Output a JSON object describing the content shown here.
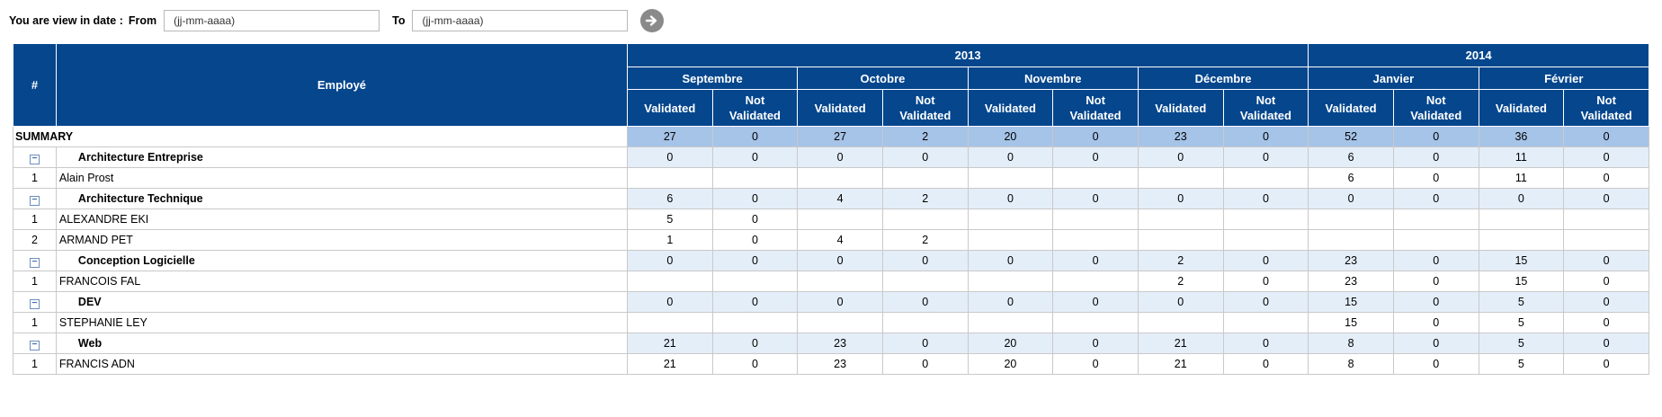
{
  "filter": {
    "title": "You are view in date :",
    "from_label": "From",
    "from_placeholder": "(jj-mm-aaaa)",
    "to_label": "To",
    "to_placeholder": "(jj-mm-aaaa)"
  },
  "table": {
    "hash_header": "#",
    "employee_header": "Employé",
    "years": [
      {
        "label": "2013",
        "span": 8
      },
      {
        "label": "2014",
        "span": 4
      }
    ],
    "months": [
      "Septembre",
      "Octobre",
      "Novembre",
      "Décembre",
      "Janvier",
      "Février"
    ],
    "sub_validated": "Validated",
    "sub_not_validated_1": "Not",
    "sub_not_validated_2": "Validated",
    "summary": {
      "label": "SUMMARY",
      "values": [
        "27",
        "0",
        "27",
        "2",
        "20",
        "0",
        "23",
        "0",
        "52",
        "0",
        "36",
        "0"
      ]
    },
    "groups": [
      {
        "name": "Architecture Entreprise",
        "values": [
          "0",
          "0",
          "0",
          "0",
          "0",
          "0",
          "0",
          "0",
          "6",
          "0",
          "11",
          "0"
        ],
        "rows": [
          {
            "num": "1",
            "name": "Alain Prost",
            "values": [
              "",
              "",
              "",
              "",
              "",
              "",
              "",
              "",
              "6",
              "0",
              "11",
              "0"
            ]
          }
        ]
      },
      {
        "name": "Architecture Technique",
        "values": [
          "6",
          "0",
          "4",
          "2",
          "0",
          "0",
          "0",
          "0",
          "0",
          "0",
          "0",
          "0"
        ],
        "rows": [
          {
            "num": "1",
            "name": "ALEXANDRE EKI",
            "values": [
              "5",
              "0",
              "",
              "",
              "",
              "",
              "",
              "",
              "",
              "",
              "",
              ""
            ]
          },
          {
            "num": "2",
            "name": "ARMAND PET",
            "values": [
              "1",
              "0",
              "4",
              "2",
              "",
              "",
              "",
              "",
              "",
              "",
              "",
              ""
            ]
          }
        ]
      },
      {
        "name": "Conception Logicielle",
        "values": [
          "0",
          "0",
          "0",
          "0",
          "0",
          "0",
          "2",
          "0",
          "23",
          "0",
          "15",
          "0"
        ],
        "rows": [
          {
            "num": "1",
            "name": "FRANCOIS FAL",
            "values": [
              "",
              "",
              "",
              "",
              "",
              "",
              "2",
              "0",
              "23",
              "0",
              "15",
              "0"
            ]
          }
        ]
      },
      {
        "name": "DEV",
        "values": [
          "0",
          "0",
          "0",
          "0",
          "0",
          "0",
          "0",
          "0",
          "15",
          "0",
          "5",
          "0"
        ],
        "rows": [
          {
            "num": "1",
            "name": "STEPHANIE LEY",
            "values": [
              "",
              "",
              "",
              "",
              "",
              "",
              "",
              "",
              "15",
              "0",
              "5",
              "0"
            ]
          }
        ]
      },
      {
        "name": "Web",
        "values": [
          "21",
          "0",
          "23",
          "0",
          "20",
          "0",
          "21",
          "0",
          "8",
          "0",
          "5",
          "0"
        ],
        "rows": [
          {
            "num": "1",
            "name": "FRANCIS ADN",
            "values": [
              "21",
              "0",
              "23",
              "0",
              "20",
              "0",
              "21",
              "0",
              "8",
              "0",
              "5",
              "0"
            ]
          }
        ]
      }
    ],
    "collapse_icon": "minus-box-icon"
  }
}
